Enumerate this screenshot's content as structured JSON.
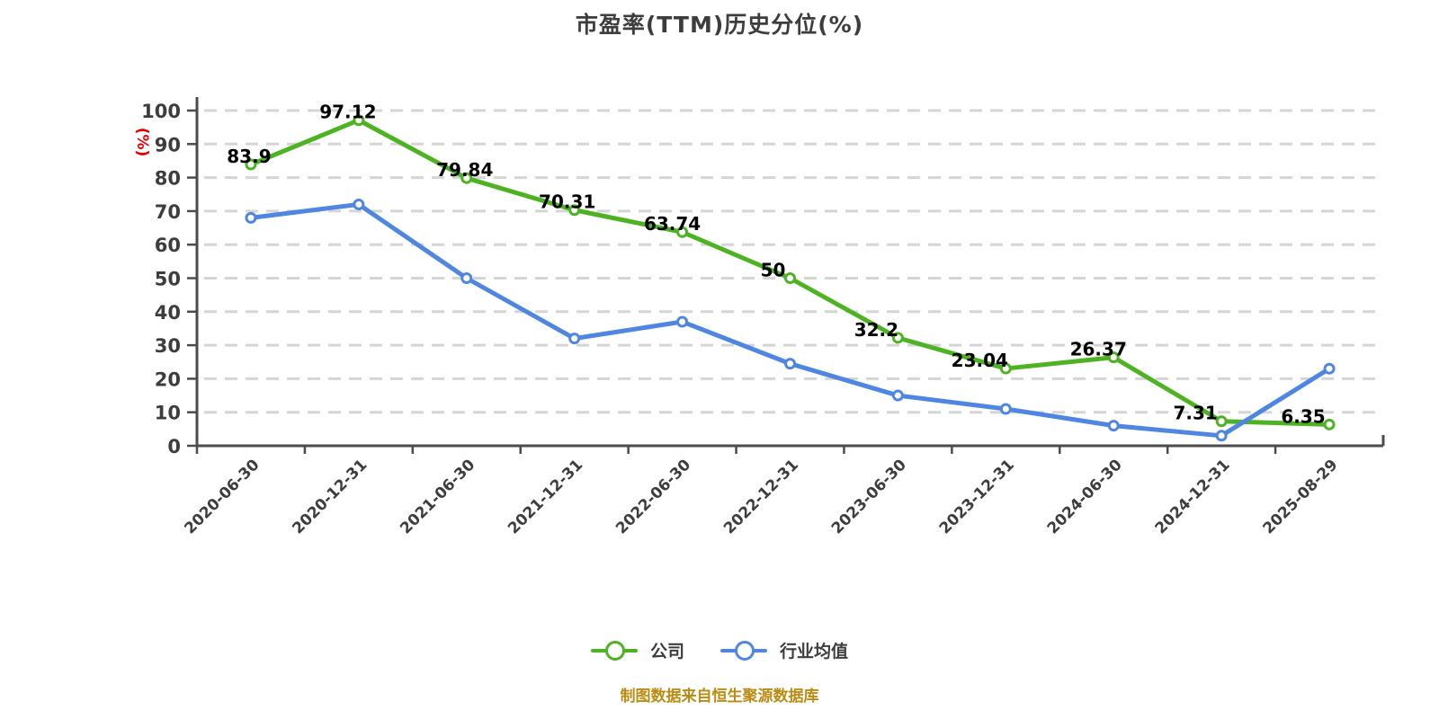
{
  "title": "市盈率(TTM)历史分位(%)",
  "footer": "制图数据来自恒生聚源数据库",
  "legend": [
    {
      "label": "公司",
      "color": "#4db322"
    },
    {
      "label": "行业均值",
      "color": "#4e86e2"
    }
  ],
  "colors": {
    "background": "#ffffff",
    "grid": "#d5d5d5",
    "axis": "#4b4b4b",
    "tick_text": "#3d3d3d",
    "value_label": "#000000",
    "y_unit": "#e60000",
    "footer": "#bb8b12",
    "marker_fill": "#ffffff"
  },
  "chart_data": {
    "type": "line",
    "title": "市盈率(TTM)历史分位(%)",
    "ylabel": "(%)",
    "xlabel": "",
    "ylim": [
      0,
      100
    ],
    "yticks": [
      0,
      10,
      20,
      30,
      40,
      50,
      60,
      70,
      80,
      90,
      100
    ],
    "grid": "horizontal dashed",
    "legend_position": "bottom",
    "categories": [
      "2020-06-30",
      "2020-12-31",
      "2021-06-30",
      "2021-12-31",
      "2022-06-30",
      "2022-12-31",
      "2023-06-30",
      "2023-12-31",
      "2024-06-30",
      "2024-12-31",
      "2025-08-29"
    ],
    "series": [
      {
        "name": "公司",
        "color": "#4db322",
        "values": [
          83.9,
          97.12,
          79.84,
          70.31,
          63.74,
          50,
          32.2,
          23.04,
          26.37,
          7.31,
          6.35
        ],
        "point_labels": [
          "83.9",
          "97.12",
          "79.84",
          "70.31",
          "63.74",
          "50",
          "32.2",
          "23.04",
          "26.37",
          "7.31",
          "6.35"
        ],
        "labels_shown": true
      },
      {
        "name": "行业均值",
        "color": "#4e86e2",
        "values": [
          68,
          72,
          50,
          32,
          37,
          24.5,
          15,
          11,
          6,
          3,
          23
        ],
        "labels_shown": false
      }
    ]
  }
}
